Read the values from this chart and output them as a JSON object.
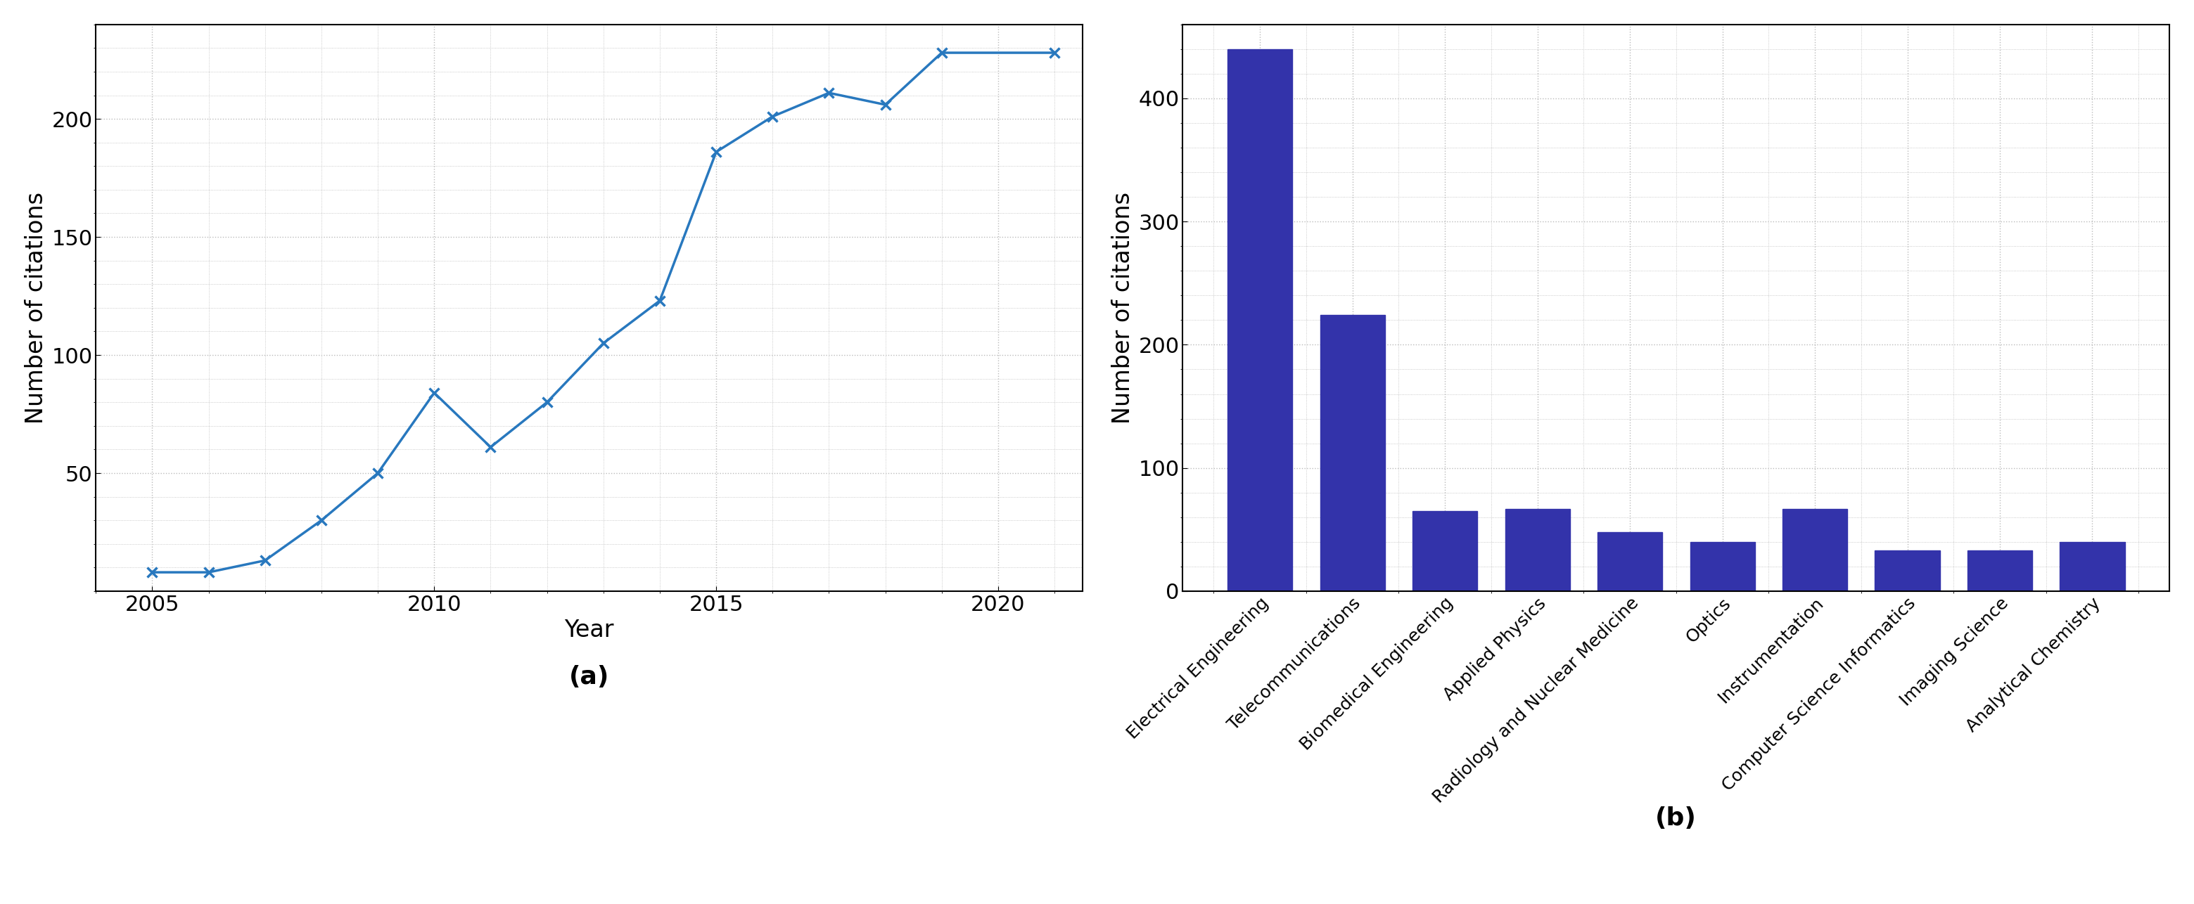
{
  "line_years": [
    2005,
    2006,
    2007,
    2008,
    2009,
    2010,
    2011,
    2012,
    2013,
    2014,
    2015,
    2016,
    2017,
    2018,
    2019,
    2021
  ],
  "line_citations": [
    8,
    8,
    13,
    30,
    50,
    84,
    61,
    80,
    105,
    123,
    186,
    201,
    211,
    206,
    228,
    228
  ],
  "line_color": "#2878be",
  "line_xlabel": "Year",
  "line_ylabel": "Number of citations",
  "line_xticks": [
    2005,
    2010,
    2015,
    2020
  ],
  "line_yticks": [
    50,
    100,
    150,
    200
  ],
  "line_ylim": [
    0,
    240
  ],
  "line_xlim": [
    2004.0,
    2021.5
  ],
  "bar_categories": [
    "Electrical Engineering",
    "Telecommunications",
    "Biomedical Engineering",
    "Applied Physics",
    "Radiology and Nuclear Medicine",
    "Optics",
    "Instrumentation",
    "Computer Science Informatics",
    "Imaging Science",
    "Analytical Chemistry"
  ],
  "bar_values": [
    440,
    224,
    65,
    67,
    48,
    40,
    67,
    33,
    33,
    40
  ],
  "bar_color": "#3333aa",
  "bar_ylabel": "Number of citations",
  "bar_yticks": [
    0,
    100,
    200,
    300,
    400
  ],
  "bar_ylim": [
    0,
    460
  ],
  "label_a": "(a)",
  "label_b": "(b)",
  "bg_color": "#ffffff",
  "grid_color": "#bbbbbb"
}
